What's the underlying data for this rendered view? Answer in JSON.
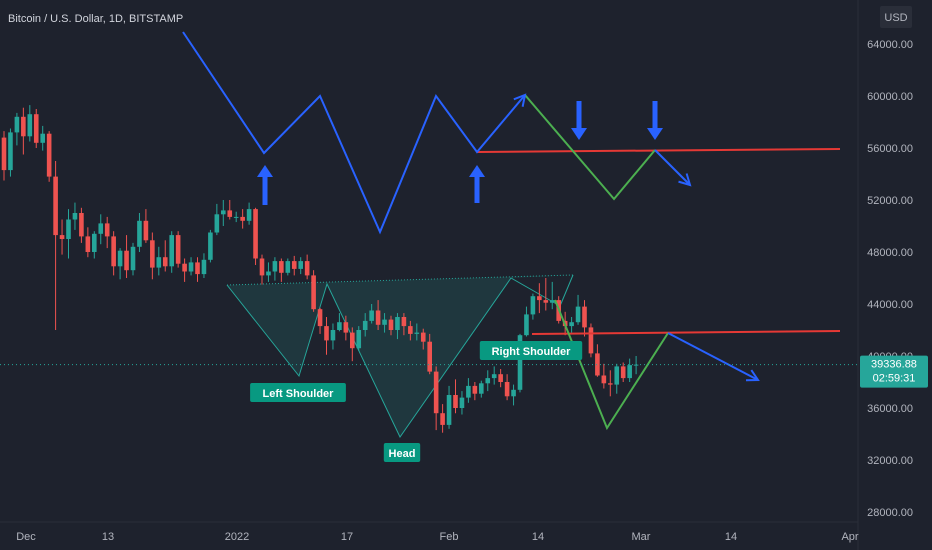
{
  "chart_data": {
    "type": "candlestick",
    "title": "Bitcoin / U.S. Dollar, 1D, BITSTAMP",
    "currency": "USD",
    "y_ticks": [
      "64000.00",
      "60000.00",
      "56000.00",
      "52000.00",
      "48000.00",
      "44000.00",
      "40000.00",
      "36000.00",
      "32000.00",
      "28000.00"
    ],
    "x_ticks": [
      "Dec",
      "13",
      "2022",
      "17",
      "Feb",
      "14",
      "Mar",
      "14",
      "Apr"
    ],
    "last_price": "39336.88",
    "countdown": "02:59:31",
    "ylim": [
      27000,
      66500
    ],
    "candles": [
      [
        56800,
        57300,
        53500,
        54300
      ],
      [
        54300,
        57500,
        53800,
        57200
      ],
      [
        57200,
        58700,
        56200,
        58400
      ],
      [
        58400,
        59100,
        55500,
        56900
      ],
      [
        56900,
        59300,
        56500,
        58600
      ],
      [
        58600,
        59000,
        56000,
        56400
      ],
      [
        56400,
        57700,
        55800,
        57100
      ],
      [
        57100,
        57300,
        53400,
        53800
      ],
      [
        53800,
        55000,
        42000,
        49300
      ],
      [
        49300,
        50500,
        47800,
        49000
      ],
      [
        49000,
        51300,
        47500,
        50500
      ],
      [
        50500,
        51800,
        49700,
        51000
      ],
      [
        51000,
        51400,
        48700,
        49200
      ],
      [
        49200,
        49900,
        47600,
        48000
      ],
      [
        48000,
        49600,
        47500,
        49400
      ],
      [
        49400,
        50900,
        48600,
        50200
      ],
      [
        50200,
        50700,
        48300,
        49200
      ],
      [
        49200,
        49600,
        46200,
        46900
      ],
      [
        46900,
        48300,
        45900,
        48100
      ],
      [
        48100,
        49300,
        46000,
        46600
      ],
      [
        46600,
        48700,
        46200,
        48400
      ],
      [
        48400,
        51000,
        48000,
        50400
      ],
      [
        50400,
        51300,
        48700,
        48900
      ],
      [
        48900,
        49500,
        45900,
        46800
      ],
      [
        46800,
        48400,
        46200,
        47600
      ],
      [
        47600,
        48900,
        46500,
        46900
      ],
      [
        46900,
        49600,
        46400,
        49300
      ],
      [
        49300,
        49600,
        46800,
        47100
      ],
      [
        47100,
        47500,
        45700,
        46500
      ],
      [
        46500,
        47600,
        46200,
        47200
      ],
      [
        47200,
        47600,
        45700,
        46300
      ],
      [
        46300,
        47900,
        46000,
        47400
      ],
      [
        47400,
        49700,
        47200,
        49500
      ],
      [
        49500,
        51700,
        49300,
        50900
      ],
      [
        50900,
        52000,
        50000,
        51200
      ],
      [
        51200,
        52000,
        50500,
        50700
      ],
      [
        50700,
        51100,
        50300,
        50700
      ],
      [
        50700,
        51300,
        49800,
        50400
      ],
      [
        50400,
        51800,
        50100,
        51300
      ],
      [
        51300,
        51400,
        47000,
        47500
      ],
      [
        47500,
        47800,
        45500,
        46200
      ],
      [
        46200,
        47200,
        45700,
        46500
      ],
      [
        46500,
        47600,
        45800,
        47300
      ],
      [
        47300,
        47500,
        45700,
        46400
      ],
      [
        46400,
        47500,
        46200,
        47300
      ],
      [
        47300,
        47700,
        46200,
        46700
      ],
      [
        46700,
        47600,
        46300,
        47300
      ],
      [
        47300,
        47800,
        45900,
        46200
      ],
      [
        46200,
        46600,
        43400,
        43600
      ],
      [
        43600,
        43700,
        41700,
        42300
      ],
      [
        42300,
        43000,
        40100,
        41200
      ],
      [
        41200,
        42500,
        40500,
        42000
      ],
      [
        42000,
        43300,
        41900,
        42600
      ],
      [
        42600,
        43100,
        41200,
        41800
      ],
      [
        41800,
        42200,
        39600,
        40600
      ],
      [
        40600,
        42300,
        40400,
        42000
      ],
      [
        42000,
        43300,
        41500,
        42700
      ],
      [
        42700,
        44000,
        42500,
        43500
      ],
      [
        43500,
        44300,
        42000,
        42400
      ],
      [
        42400,
        43300,
        41800,
        42800
      ],
      [
        42800,
        43100,
        41600,
        42000
      ],
      [
        42000,
        43300,
        41300,
        43000
      ],
      [
        43000,
        43300,
        41600,
        42300
      ],
      [
        42300,
        42700,
        41200,
        41700
      ],
      [
        41700,
        42500,
        41200,
        41800
      ],
      [
        41800,
        42100,
        40500,
        41100
      ],
      [
        41100,
        41700,
        38600,
        38800
      ],
      [
        38800,
        39200,
        34300,
        35600
      ],
      [
        35600,
        36300,
        34100,
        34700
      ],
      [
        34700,
        37700,
        34400,
        37000
      ],
      [
        37000,
        38200,
        35600,
        36000
      ],
      [
        36000,
        37300,
        35500,
        36800
      ],
      [
        36800,
        38300,
        36400,
        37700
      ],
      [
        37700,
        38000,
        36600,
        37100
      ],
      [
        37100,
        38100,
        36800,
        37900
      ],
      [
        37900,
        38900,
        37300,
        38300
      ],
      [
        38300,
        39200,
        37800,
        38600
      ],
      [
        38600,
        39000,
        37600,
        38000
      ],
      [
        38000,
        38600,
        36600,
        36900
      ],
      [
        36900,
        37800,
        36200,
        37400
      ],
      [
        37400,
        41700,
        37200,
        41600
      ],
      [
        41600,
        43800,
        41500,
        43200
      ],
      [
        43200,
        44800,
        42800,
        44600
      ],
      [
        44600,
        45600,
        43300,
        44300
      ],
      [
        44300,
        46000,
        43500,
        44100
      ],
      [
        44100,
        45700,
        43600,
        44300
      ],
      [
        44300,
        44600,
        42500,
        42700
      ],
      [
        42700,
        43400,
        41600,
        42300
      ],
      [
        42300,
        43000,
        41800,
        42600
      ],
      [
        42600,
        44700,
        42400,
        43800
      ],
      [
        43800,
        44300,
        41500,
        42200
      ],
      [
        42200,
        42500,
        39900,
        40200
      ],
      [
        40200,
        40900,
        38400,
        38500
      ],
      [
        38500,
        39400,
        37500,
        37900
      ],
      [
        37900,
        38900,
        36900,
        37800
      ],
      [
        37800,
        39400,
        37100,
        39200
      ],
      [
        39200,
        39500,
        38000,
        38300
      ],
      [
        38300,
        39800,
        38000,
        39300
      ],
      [
        39300,
        40000,
        38600,
        39336.88
      ]
    ],
    "overlays": {
      "blue_zigzag": [
        [
          183,
          32
        ],
        [
          264,
          153
        ],
        [
          320,
          96
        ],
        [
          380,
          232
        ],
        [
          436,
          96
        ],
        [
          477,
          152
        ],
        [
          525,
          95
        ]
      ],
      "green_upper_zigzag": [
        [
          525,
          95
        ],
        [
          614,
          199
        ],
        [
          655,
          150
        ]
      ],
      "blue_upper_arrow": [
        [
          655,
          150
        ],
        [
          690,
          185
        ]
      ],
      "red_line_upper": [
        [
          477,
          152
        ],
        [
          840,
          149
        ]
      ],
      "red_line_lower": [
        [
          532,
          334
        ],
        [
          840,
          331
        ]
      ],
      "green_lower_zigzag": [
        [
          555,
          300
        ],
        [
          607,
          428
        ],
        [
          668,
          333
        ]
      ],
      "blue_lower_arrow": [
        [
          668,
          333
        ],
        [
          758,
          380
        ]
      ],
      "up_arrows": [
        [
          265,
          165,
          205
        ],
        [
          477,
          165,
          203
        ]
      ],
      "down_arrows": [
        [
          579,
          101,
          140
        ],
        [
          655,
          101,
          140
        ]
      ],
      "hs_polygon": [
        [
          227,
          285
        ],
        [
          299,
          376
        ],
        [
          327,
          284
        ],
        [
          400,
          437
        ],
        [
          511,
          278
        ],
        [
          573,
          275
        ]
      ],
      "hs_lines": [
        [
          227,
          285
        ],
        [
          299,
          376
        ],
        [
          327,
          284
        ],
        [
          400,
          437
        ],
        [
          511,
          278
        ],
        [
          560,
          306
        ]
      ]
    },
    "annotations": [
      {
        "text": "Left Shoulder",
        "x": 298,
        "y": 393
      },
      {
        "text": "Head",
        "x": 402,
        "y": 453
      },
      {
        "text": "Right Shoulder",
        "x": 531,
        "y": 351
      }
    ]
  }
}
